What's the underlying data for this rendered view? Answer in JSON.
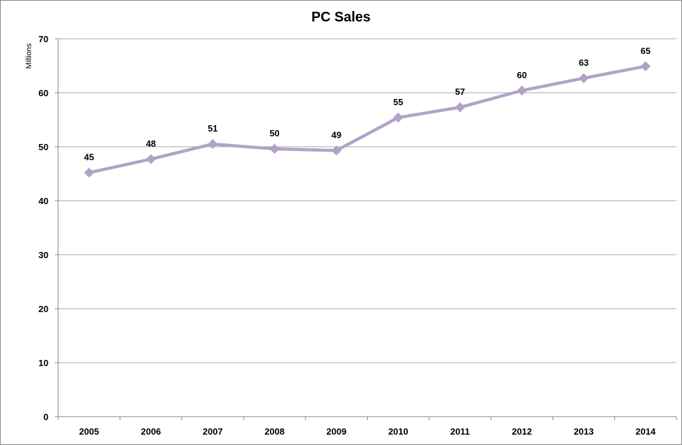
{
  "chart_data": {
    "type": "line",
    "title": "PC Sales",
    "xlabel": "",
    "ylabel": "Millions",
    "categories": [
      "2005",
      "2006",
      "2007",
      "2008",
      "2009",
      "2010",
      "2011",
      "2012",
      "2013",
      "2014"
    ],
    "series": [
      {
        "values": [
          45.2,
          47.7,
          50.5,
          49.6,
          49.3,
          55.4,
          57.3,
          60.4,
          62.7,
          64.9
        ],
        "data_labels": [
          "45",
          "48",
          "51",
          "50",
          "49",
          "55",
          "57",
          "60",
          "63",
          "65"
        ]
      }
    ],
    "ylim": [
      0,
      70
    ],
    "yticks": [
      "0",
      "10",
      "20",
      "30",
      "40",
      "50",
      "60",
      "70"
    ],
    "grid": "horizontal",
    "legend": "none",
    "colors": {
      "line": "#b3a2c7",
      "marker": "#b3a2c7",
      "grid": "#a6a6a6",
      "axis": "#868686"
    },
    "marker": "diamond"
  }
}
